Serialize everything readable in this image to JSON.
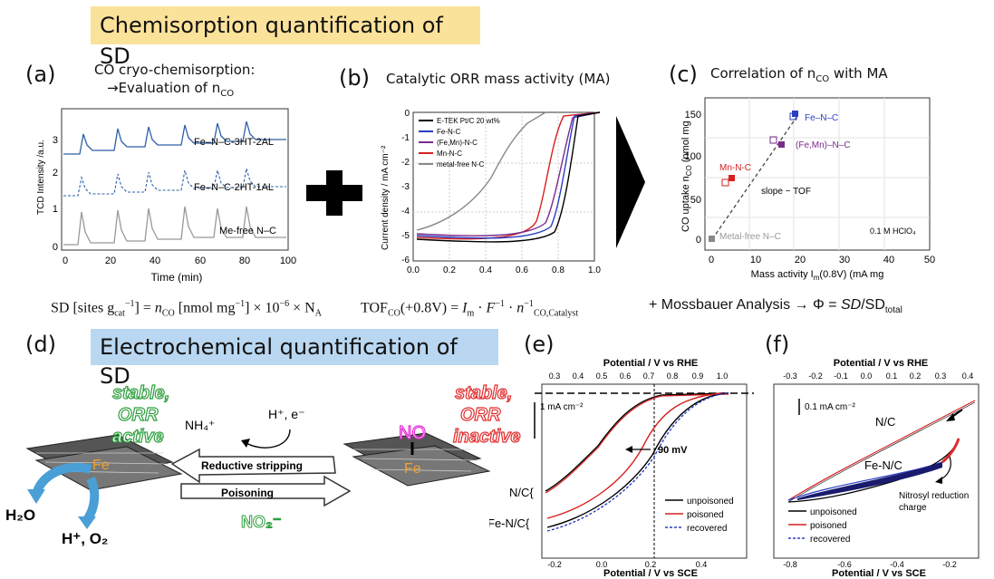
{
  "header": {
    "title1": "Chemisorption quantification of SD",
    "title2": "Electrochemical quantification of SD"
  },
  "panels": {
    "a": "(a)",
    "b": "(b)",
    "c": "(c)",
    "d": "(d)",
    "e": "(e)",
    "f": "(f)"
  },
  "panel_a": {
    "caption1": "CO cryo-chemisorption:",
    "caption2": "→Evaluation of n",
    "caption2_sub": "CO",
    "ylabel": "TCD Intensity /a.u.",
    "xlabel": "Time (min)",
    "labels": [
      "Fe–N–C-3HT-2AL",
      "Fe–N–C-2HT-1AL",
      "Me-free N–C"
    ],
    "xticks": [
      "0",
      "20",
      "40",
      "60",
      "80",
      "100"
    ],
    "yticks": [
      "0",
      "1",
      "2",
      "3"
    ]
  },
  "panel_b": {
    "caption": "Catalytic ORR mass activity (MA)",
    "ylabel": "Current density / mA cm⁻²",
    "legend": [
      "E-TEK Pt/C 20 wt%",
      "Fe-N-C",
      "(Fe,Mn)-N-C",
      "Mn-N-C",
      "metal-free N-C"
    ],
    "xticks": [
      "0.0",
      "0.2",
      "0.4",
      "0.6",
      "0.8",
      "1.0"
    ],
    "yticks": [
      "0",
      "-1",
      "-2",
      "-3",
      "-4",
      "-5",
      "-6"
    ]
  },
  "panel_c": {
    "caption": "Correlation of n",
    "caption_sub": "CO",
    "caption_end": " with MA",
    "ylabel": "CO uptake n",
    "ylabel_sub": "CO",
    "ylabel_end": " (nmol mg",
    "xlabel": "Mass activity I",
    "xlabel_sub": "m",
    "xlabel_end": "(0.8V) (mA mg",
    "labels": [
      "Fe–N–C",
      "(Fe,Mn)–N–C",
      "Mn-N-C",
      "Metal-free N–C",
      "slope ~ TOF",
      "0.1 M HClO₄"
    ],
    "xticks": [
      "0",
      "10",
      "20",
      "30",
      "40",
      "50"
    ],
    "yticks": [
      "0",
      "50",
      "100",
      "150"
    ]
  },
  "equations": {
    "sd": "SD [sites g",
    "tof": "TOF",
    "mossbauer": "+ Mossbauer Analysis →"
  },
  "panel_d": {
    "stable_active": [
      "stable,",
      "ORR",
      "active"
    ],
    "stable_inactive": [
      "stable,",
      "ORR",
      "inactive"
    ],
    "nh4": "NH₄⁺",
    "he": "H⁺, e⁻",
    "reductive": "Reductive stripping",
    "poisoning": "Poisoning",
    "no2": "NO₂⁻",
    "no": "NO",
    "fe": "Fe",
    "h2o": "H₂O",
    "ho2": "H⁺, O₂"
  },
  "panel_e": {
    "top_xlabel": "Potential / V vs RHE",
    "bottom_xlabel": "Potential / V vs SCE",
    "top_ticks": [
      "0.3",
      "0.4",
      "0.5",
      "0.6",
      "0.7",
      "0.8",
      "0.9",
      "1.0"
    ],
    "bottom_ticks": [
      "-0.2",
      "0.0",
      "0.2",
      "0.4"
    ],
    "scale": "1 mA cm⁻²",
    "delta": "90 mV",
    "nc": "N/C{",
    "fenc": "Fe-N/C{",
    "legend": [
      "unpoisoned",
      "poisoned",
      "recovered"
    ]
  },
  "panel_f": {
    "top_xlabel": "Potential / V vs RHE",
    "bottom_xlabel": "Potential / V vs SCE",
    "top_ticks": [
      "-0.3",
      "-0.2",
      "-0.1",
      "0.0",
      "0.1",
      "0.2",
      "0.3",
      "0.4"
    ],
    "bottom_ticks": [
      "-0.8",
      "-0.6",
      "-0.4",
      "-0.2"
    ],
    "scale": "0.1 mA cm⁻²",
    "nc": "N/C",
    "fenc": "Fe-N/C",
    "nitrosyl": [
      "Nitrosyl reduction",
      "charge"
    ],
    "legend": [
      "unpoisoned",
      "poisoned",
      "recovered"
    ]
  },
  "colors": {
    "banner1": "#fbe29a",
    "banner2": "#b9d7f0",
    "stable_active": "#2e9e3e",
    "stable_inactive": "#e02b2b",
    "no_pink": "#e82bd6",
    "arrow_blue": "#4a9fd6"
  }
}
